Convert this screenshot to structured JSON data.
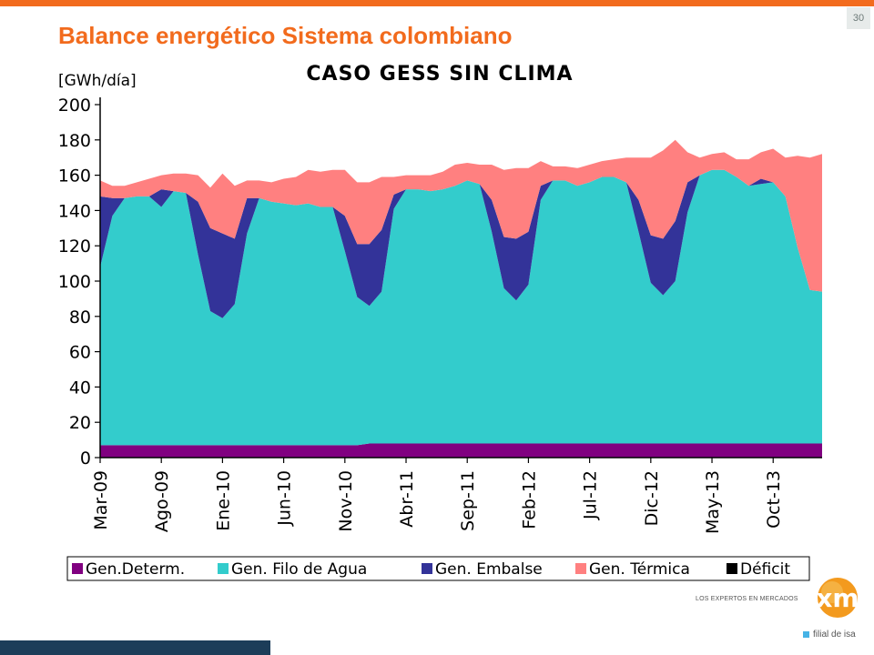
{
  "slide": {
    "title": "Balance energético Sistema colombiano",
    "page_number": "30"
  },
  "logo": {
    "tagline": "LOS EXPERTOS EN MERCADOS",
    "mark": "xm",
    "subtitle": "filial de isa"
  },
  "chart_data": {
    "type": "area",
    "stacked": true,
    "title": "CASO GESS SIN CLIMA",
    "ylabel": "[GWh/día]",
    "ylim": [
      0,
      200
    ],
    "yticks": [
      0,
      20,
      40,
      60,
      80,
      100,
      120,
      140,
      160,
      180,
      200
    ],
    "grid": false,
    "legend_position": "bottom",
    "x_tick_labels": [
      "Mar-09",
      "Ago-09",
      "Ene-10",
      "Jun-10",
      "Nov-10",
      "Abr-11",
      "Sep-11",
      "Feb-12",
      "Jul-12",
      "Dic-12",
      "May-13",
      "Oct-13"
    ],
    "x_tick_every": 5,
    "series": [
      {
        "name": "Gen.Determ.",
        "color": "#800080",
        "values": [
          7,
          7,
          7,
          7,
          7,
          7,
          7,
          7,
          7,
          7,
          7,
          7,
          7,
          7,
          7,
          7,
          7,
          7,
          7,
          7,
          7,
          7,
          8,
          8,
          8,
          8,
          8,
          8,
          8,
          8,
          8,
          8,
          8,
          8,
          8,
          8,
          8,
          8,
          8,
          8,
          8,
          8,
          8,
          8,
          8,
          8,
          8,
          8,
          8,
          8,
          8,
          8,
          8,
          8,
          8,
          8,
          8,
          8,
          8,
          8
        ]
      },
      {
        "name": "Gen. Filo de Agua",
        "color": "#33cccc",
        "values": [
          101,
          130,
          140,
          141,
          141,
          135,
          144,
          143,
          108,
          76,
          72,
          80,
          120,
          140,
          138,
          137,
          136,
          137,
          135,
          135,
          110,
          84,
          78,
          86,
          133,
          144,
          144,
          143,
          144,
          146,
          149,
          147,
          120,
          88,
          81,
          90,
          138,
          149,
          149,
          146,
          148,
          151,
          151,
          148,
          120,
          91,
          84,
          92,
          131,
          152,
          155,
          155,
          151,
          146,
          147,
          148,
          140,
          111,
          87,
          86
        ]
      },
      {
        "name": "Gen. Embalse",
        "color": "#333399",
        "values": [
          40,
          10,
          0,
          0,
          0,
          10,
          0,
          0,
          30,
          47,
          48,
          37,
          20,
          0,
          0,
          0,
          0,
          0,
          0,
          0,
          20,
          30,
          35,
          35,
          8,
          0,
          0,
          0,
          0,
          0,
          0,
          0,
          18,
          29,
          35,
          30,
          8,
          0,
          0,
          0,
          0,
          0,
          0,
          0,
          18,
          27,
          32,
          34,
          17,
          0,
          0,
          0,
          0,
          0,
          3,
          0,
          0,
          0,
          0,
          0
        ]
      },
      {
        "name": "Gen. Térmica",
        "color": "#ff8080",
        "values": [
          9,
          7,
          7,
          8,
          10,
          8,
          10,
          11,
          15,
          23,
          34,
          30,
          10,
          10,
          11,
          14,
          16,
          19,
          20,
          21,
          26,
          35,
          35,
          30,
          10,
          8,
          8,
          9,
          10,
          12,
          10,
          11,
          20,
          38,
          40,
          36,
          14,
          8,
          8,
          10,
          10,
          9,
          10,
          14,
          24,
          44,
          50,
          46,
          17,
          10,
          9,
          10,
          10,
          15,
          15,
          19,
          22,
          52,
          75,
          78
        ]
      },
      {
        "name": "Déficit",
        "color": "#000000",
        "values": [
          0,
          0,
          0,
          0,
          0,
          0,
          0,
          0,
          0,
          0,
          0,
          0,
          0,
          0,
          0,
          0,
          0,
          0,
          0,
          0,
          0,
          0,
          0,
          0,
          0,
          0,
          0,
          0,
          0,
          0,
          0,
          0,
          0,
          0,
          0,
          0,
          0,
          0,
          0,
          0,
          0,
          0,
          0,
          0,
          0,
          0,
          0,
          0,
          0,
          0,
          0,
          0,
          0,
          0,
          0,
          0,
          0,
          0,
          0,
          0
        ]
      }
    ]
  }
}
